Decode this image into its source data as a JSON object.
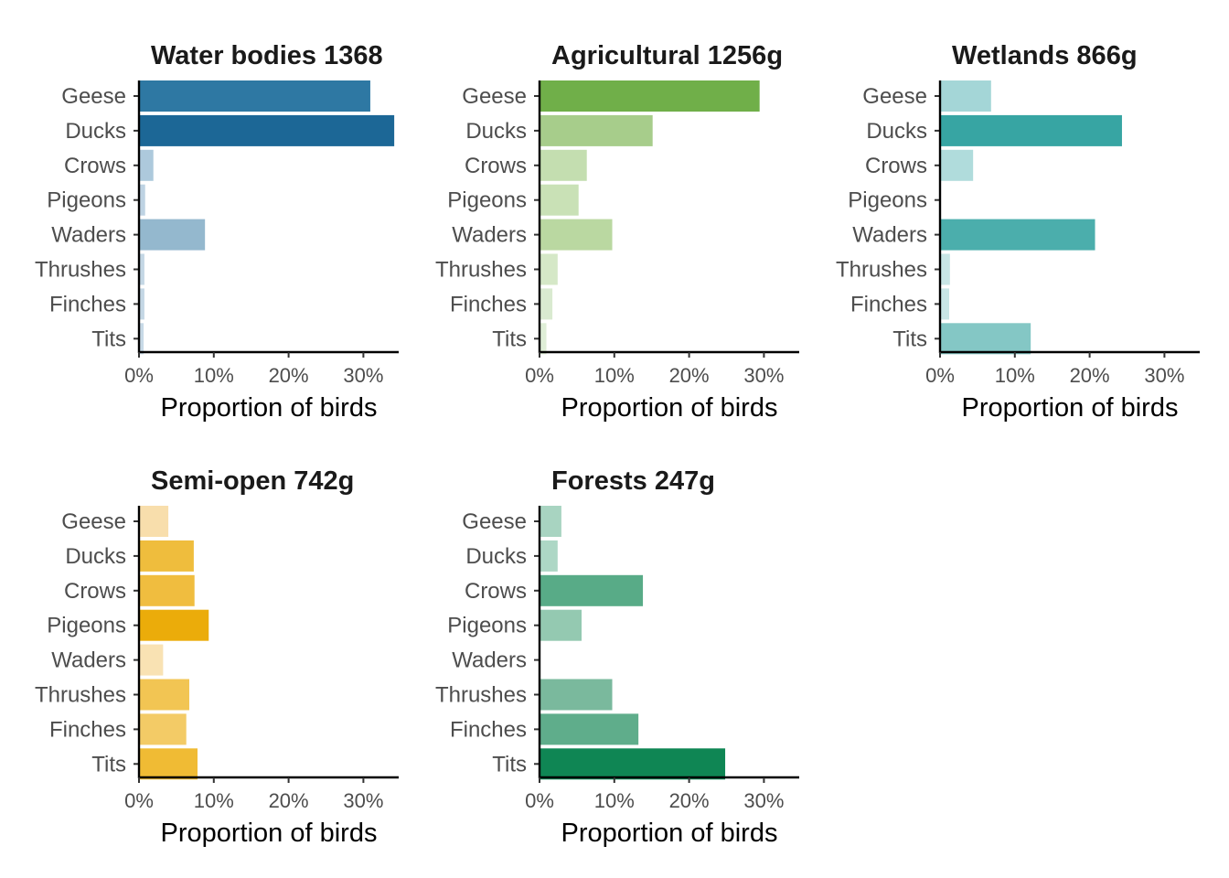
{
  "chart_data": [
    {
      "type": "bar",
      "orientation": "horizontal",
      "title": "Water bodies 1368",
      "categories": [
        "Geese",
        "Ducks",
        "Crows",
        "Pigeons",
        "Waders",
        "Thrushes",
        "Finches",
        "Tits"
      ],
      "values": [
        30.8,
        34.0,
        1.8,
        0.7,
        8.7,
        0.6,
        0.6,
        0.5
      ],
      "colors": [
        "#2e78a3",
        "#1c6796",
        "#adc9dc",
        "#bed3e3",
        "#94b8ce",
        "#c4d7e5",
        "#c4d7e5",
        "#c8dae7"
      ],
      "xlabel": "Proportion of birds",
      "xlim": [
        0,
        35
      ],
      "xticks": [
        "0%",
        "10%",
        "20%",
        "30%"
      ]
    },
    {
      "type": "bar",
      "orientation": "horizontal",
      "title": "Agricultural 1256g",
      "categories": [
        "Geese",
        "Ducks",
        "Crows",
        "Pigeons",
        "Waders",
        "Thrushes",
        "Finches",
        "Tits"
      ],
      "values": [
        29.3,
        15.0,
        6.2,
        5.1,
        9.6,
        2.3,
        1.6,
        0.8
      ],
      "colors": [
        "#70af49",
        "#a7cd8b",
        "#c4deb0",
        "#c9e1b6",
        "#bad8a1",
        "#d5e8c7",
        "#d9ead0",
        "#dfeed7"
      ],
      "xlabel": "Proportion of birds",
      "xlim": [
        0,
        35
      ],
      "xticks": [
        "0%",
        "10%",
        "20%",
        "30%"
      ]
    },
    {
      "type": "bar",
      "orientation": "horizontal",
      "title": "Wetlands 866g",
      "categories": [
        "Geese",
        "Ducks",
        "Crows",
        "Pigeons",
        "Waders",
        "Thrushes",
        "Finches",
        "Tits"
      ],
      "values": [
        6.7,
        24.2,
        4.3,
        0,
        20.6,
        1.2,
        1.1,
        12.0
      ],
      "colors": [
        "#a4d6d7",
        "#37a5a3",
        "#b0dcdc",
        "#c8e6e6",
        "#4baeac",
        "#c8e6e6",
        "#c8e6e6",
        "#84c7c5"
      ],
      "xlabel": "Proportion of birds",
      "xlim": [
        0,
        35
      ],
      "xticks": [
        "0%",
        "10%",
        "20%",
        "30%"
      ]
    },
    {
      "type": "bar",
      "orientation": "horizontal",
      "title": "Semi-open 742g",
      "categories": [
        "Geese",
        "Ducks",
        "Crows",
        "Pigeons",
        "Waders",
        "Thrushes",
        "Finches",
        "Tits"
      ],
      "values": [
        3.8,
        7.2,
        7.3,
        9.2,
        3.1,
        6.6,
        6.2,
        7.7
      ],
      "colors": [
        "#f8deac",
        "#efbd3d",
        "#f0bd3f",
        "#ebac0a",
        "#f9e2b3",
        "#f2c553",
        "#f3cb66",
        "#f0bb34"
      ],
      "xlabel": "Proportion of birds",
      "xlim": [
        0,
        35
      ],
      "xticks": [
        "0%",
        "10%",
        "20%",
        "30%"
      ]
    },
    {
      "type": "bar",
      "orientation": "horizontal",
      "title": "Forests 247g",
      "categories": [
        "Geese",
        "Ducks",
        "Crows",
        "Pigeons",
        "Waders",
        "Thrushes",
        "Finches",
        "Tits"
      ],
      "values": [
        2.8,
        2.3,
        13.7,
        5.5,
        0,
        9.6,
        13.1,
        24.7
      ],
      "colors": [
        "#a8d4c1",
        "#add7c5",
        "#58ab87",
        "#94c9b1",
        "#d0e8dd",
        "#7ab99d",
        "#5fad8b",
        "#0f8654"
      ],
      "xlabel": "Proportion of birds",
      "xlim": [
        0,
        35
      ],
      "xticks": [
        "0%",
        "10%",
        "20%",
        "30%"
      ]
    }
  ]
}
